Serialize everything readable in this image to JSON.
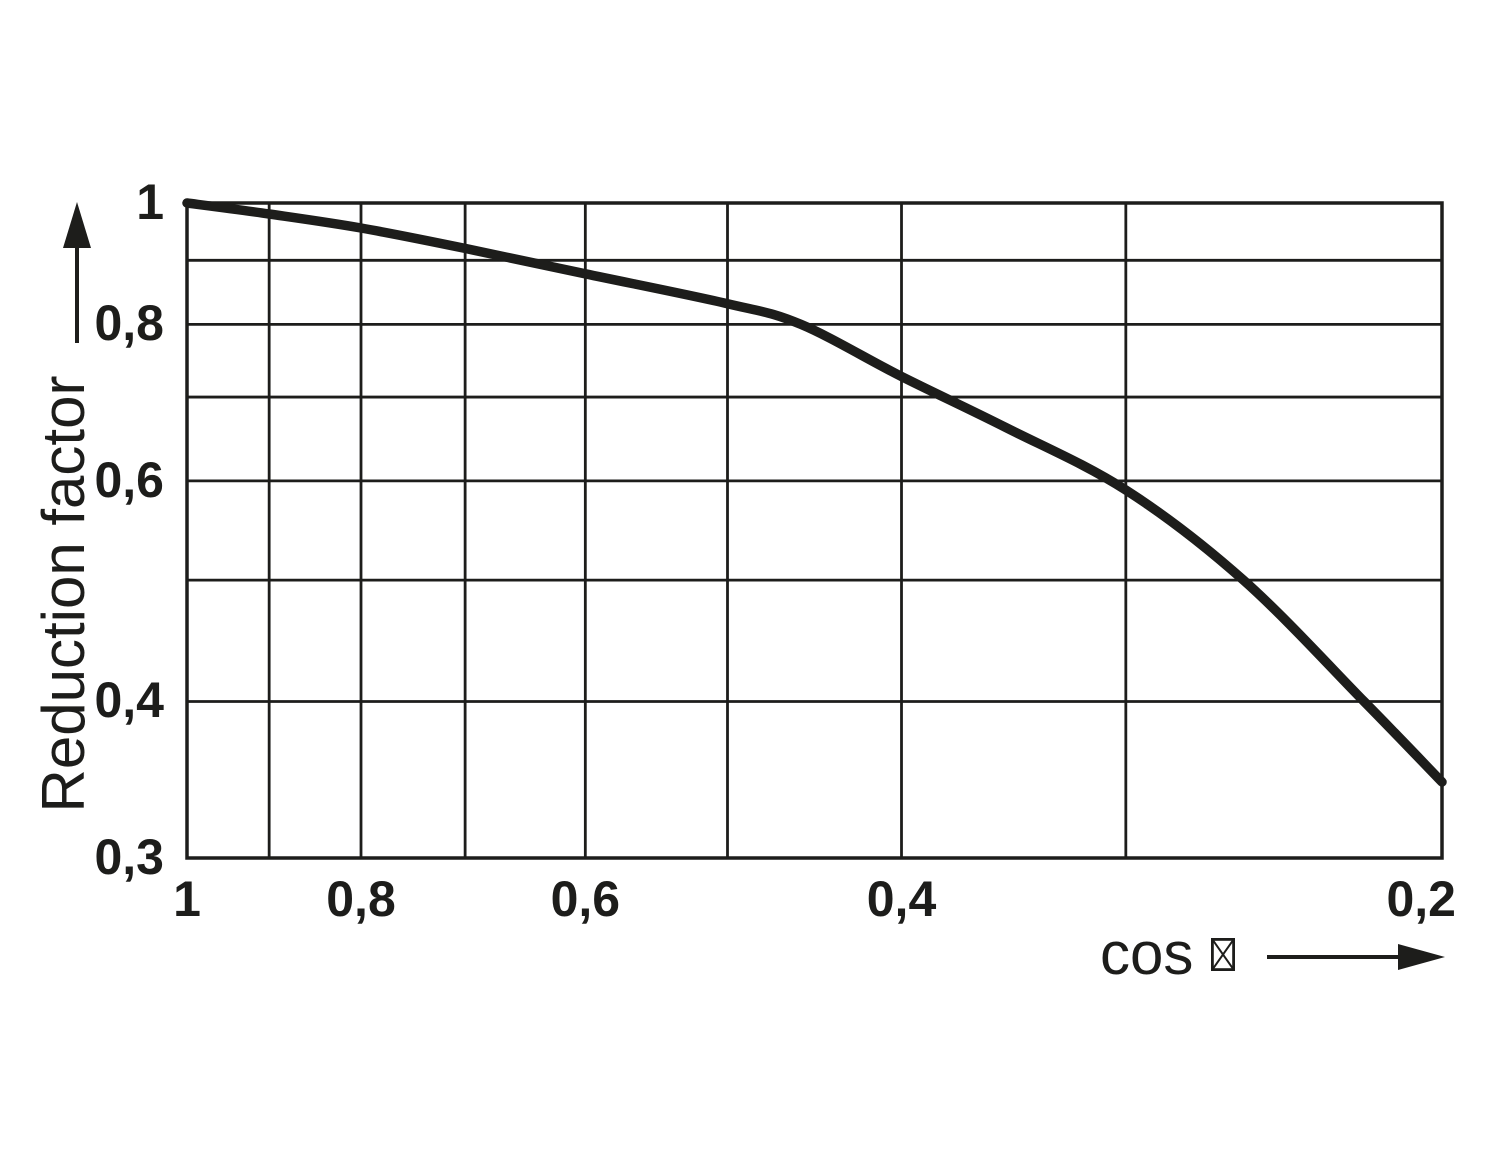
{
  "colors": {
    "background": "#ffffff",
    "ink": "#1d1d1b"
  },
  "icons": {
    "x_axis_symbol": "missing-glyph-box (unrendered phi character)",
    "x_axis_arrow": "arrow-right-solid",
    "y_axis_arrow": "arrow-up-solid"
  },
  "y_axis": {
    "title": "Reduction factor",
    "scale": "log",
    "range_top_to_bottom": [
      1,
      0.3
    ],
    "gridline_values": [
      1,
      0.9,
      0.8,
      0.7,
      0.6,
      0.5,
      0.4,
      0.3
    ],
    "ticks": [
      {
        "value": 1,
        "label": "1"
      },
      {
        "value": 0.8,
        "label": "0,8"
      },
      {
        "value": 0.6,
        "label": "0,6"
      },
      {
        "value": 0.4,
        "label": "0,4"
      },
      {
        "value": 0.3,
        "label": "0,3"
      }
    ]
  },
  "x_axis": {
    "title": "cos",
    "scale": "log",
    "range_left_to_right": [
      1,
      0.2
    ],
    "gridline_values": [
      1,
      0.9,
      0.8,
      0.7,
      0.6,
      0.5,
      0.4,
      0.3,
      0.2
    ],
    "ticks": [
      {
        "value": 1,
        "label": "1"
      },
      {
        "value": 0.8,
        "label": "0,8"
      },
      {
        "value": 0.6,
        "label": "0,6"
      },
      {
        "value": 0.4,
        "label": "0,4"
      },
      {
        "value": 0.2,
        "label": "0,2"
      }
    ]
  },
  "chart_data": {
    "type": "line",
    "title": "",
    "xlabel": "cos φ",
    "ylabel": "Reduction factor",
    "x_scale": "log, reversed (1 at left to 0.2 at right)",
    "y_scale": "log",
    "xlim": [
      1,
      0.2
    ],
    "ylim": [
      0.3,
      1
    ],
    "grid": "both axes, lines at every 0.1 step",
    "legend": "none",
    "series": [
      {
        "name": "reduction factor vs cos phi",
        "points": [
          [
            1.0,
            1.0
          ],
          [
            0.9,
            0.98
          ],
          [
            0.8,
            0.955
          ],
          [
            0.7,
            0.92
          ],
          [
            0.6,
            0.878
          ],
          [
            0.5,
            0.831
          ],
          [
            0.455,
            0.8
          ],
          [
            0.4,
            0.727
          ],
          [
            0.35,
            0.662
          ],
          [
            0.3,
            0.59
          ],
          [
            0.258,
            0.5
          ],
          [
            0.221,
            0.4
          ],
          [
            0.2,
            0.345
          ]
        ]
      }
    ]
  }
}
